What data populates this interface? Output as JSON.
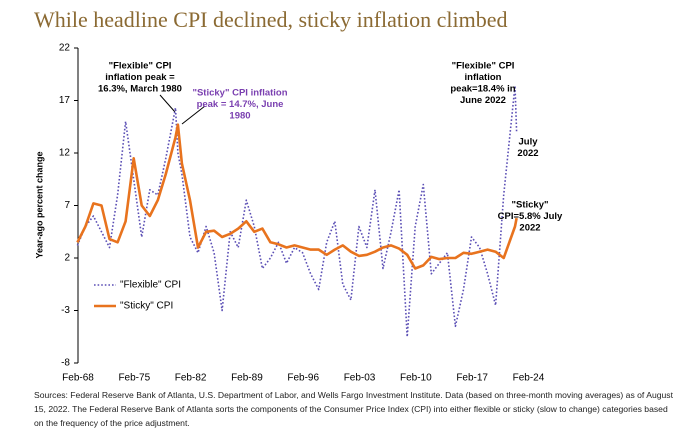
{
  "chart_data": {
    "type": "line",
    "title": "While headline CPI declined, sticky inflation climbed",
    "y_label": "Year-ago percent change",
    "x": [
      1968,
      1969,
      1970,
      1971,
      1972,
      1973,
      1974,
      1975,
      1976,
      1977,
      1978,
      1979,
      1980.2,
      1980.5,
      1981,
      1982,
      1983,
      1984,
      1985,
      1986,
      1987,
      1988,
      1989,
      1990,
      1991,
      1992,
      1993,
      1994,
      1995,
      1996,
      1997,
      1998,
      1999,
      2000,
      2001,
      2002,
      2003,
      2004,
      2005,
      2006,
      2007,
      2008,
      2009,
      2010,
      2011,
      2012,
      2013,
      2014,
      2015,
      2016,
      2017,
      2018,
      2019,
      2020,
      2021,
      2022.4,
      2022.6
    ],
    "series": [
      {
        "name": "\"Flexible\" CPI",
        "color": "#5b4fb5",
        "style": "dotted",
        "values": [
          3.2,
          5.0,
          6.0,
          4.5,
          3.0,
          8.0,
          15.0,
          9.5,
          4.0,
          8.5,
          8.0,
          11.5,
          16.3,
          12.0,
          10.0,
          4.0,
          2.5,
          5.0,
          2.5,
          -3.0,
          4.5,
          3.0,
          7.5,
          5.0,
          1.0,
          2.0,
          3.5,
          1.5,
          3.0,
          2.5,
          0.5,
          -1.0,
          3.5,
          5.5,
          -0.5,
          -2.0,
          5.0,
          3.0,
          8.5,
          1.0,
          4.5,
          8.5,
          -5.5,
          5.0,
          9.0,
          0.5,
          1.5,
          2.5,
          -4.5,
          -1.0,
          4.0,
          3.0,
          0.5,
          -2.5,
          8.0,
          18.4,
          14.0
        ]
      },
      {
        "name": "\"Sticky\" CPI",
        "color": "#e8731e",
        "style": "solid",
        "values": [
          3.5,
          5.0,
          7.2,
          7.0,
          3.8,
          3.5,
          5.5,
          11.5,
          7.0,
          6.0,
          7.5,
          10.0,
          13.5,
          14.7,
          11.0,
          7.5,
          3.0,
          4.5,
          4.6,
          4.0,
          4.3,
          4.8,
          5.5,
          4.5,
          4.8,
          3.5,
          3.3,
          3.0,
          3.2,
          3.0,
          2.8,
          2.8,
          2.3,
          2.8,
          3.2,
          2.6,
          2.2,
          2.3,
          2.6,
          3.0,
          3.2,
          2.9,
          2.3,
          1.0,
          1.3,
          2.1,
          1.9,
          2.0,
          2.0,
          2.5,
          2.4,
          2.6,
          2.8,
          2.6,
          2.0,
          5.0,
          5.8
        ]
      }
    ],
    "xlim": [
      1968.08,
      2028
    ],
    "xticks": [
      {
        "value": 1968.08,
        "label": "Feb-68"
      },
      {
        "value": 1975.08,
        "label": "Feb-75"
      },
      {
        "value": 1982.08,
        "label": "Feb-82"
      },
      {
        "value": 1989.08,
        "label": "Feb-89"
      },
      {
        "value": 1996.08,
        "label": "Feb-96"
      },
      {
        "value": 2003.08,
        "label": "Feb-03"
      },
      {
        "value": 2010.08,
        "label": "Feb-10"
      },
      {
        "value": 2017.08,
        "label": "Feb-17"
      },
      {
        "value": 2024.08,
        "label": "Feb-24"
      }
    ],
    "ylim": [
      -8,
      22
    ],
    "yticks": [
      -8,
      -3,
      2,
      7,
      12,
      17,
      22
    ],
    "legend": "lower-left",
    "annotations": [
      {
        "lines": [
          "\"Flexible\" CPI",
          "inflation peak =",
          "16.3%, March 1980"
        ],
        "color": "#000000"
      },
      {
        "lines": [
          "\"Sticky\" CPI inflation",
          "peak = 14.7%, June",
          "1980"
        ],
        "color": "#7a3fb0"
      },
      {
        "lines": [
          "\"Flexible\" CPI",
          "inflation",
          "peak=18.4% in",
          "June 2022"
        ],
        "color": "#000000"
      },
      {
        "lines": [
          "July",
          "2022"
        ],
        "color": "#000000"
      },
      {
        "lines": [
          "\"Sticky\"",
          "CPI=5.8% July",
          "2022"
        ],
        "color": "#000000"
      }
    ],
    "source": "Sources: Federal Reserve Bank of Atlanta, U.S. Department of Labor, and Wells Fargo Investment Institute. Data (based on three-month moving averages) as of August 15, 2022. The Federal Reserve Bank of Atlanta sorts the components of the Consumer Price Index (CPI) into either flexible or sticky (slow to change) categories based on the frequency of the price adjustment."
  }
}
